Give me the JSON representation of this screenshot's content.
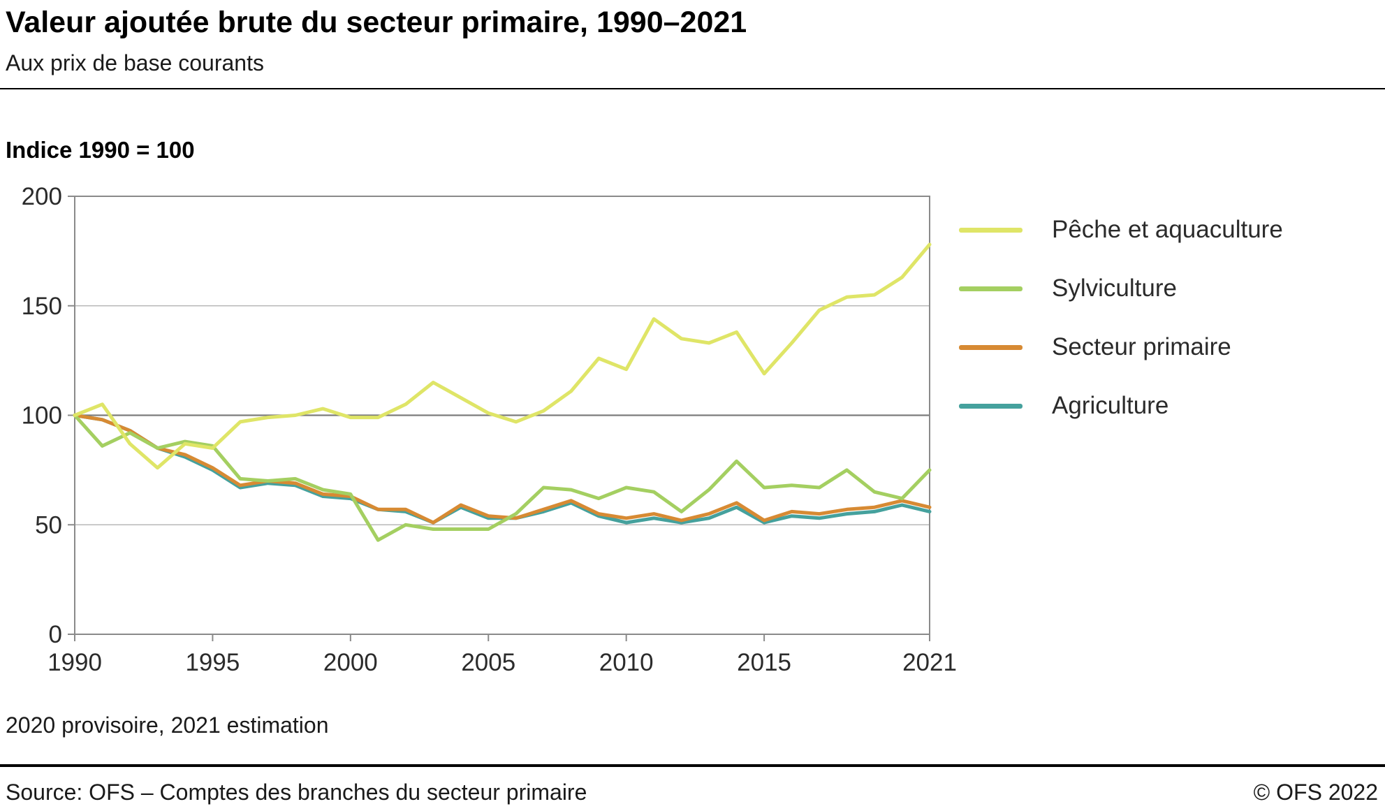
{
  "header": {
    "title": "Valeur ajoutée brute du secteur primaire, 1990–2021",
    "subtitle": "Aux prix de base courants"
  },
  "axis_note": "Indice 1990 = 100",
  "footnote": "2020 provisoire, 2021 estimation",
  "footer": {
    "source": "Source: OFS – Comptes des branches du secteur primaire",
    "copyright": "© OFS 2022"
  },
  "chart_data": {
    "type": "line",
    "x": [
      1990,
      1991,
      1992,
      1993,
      1994,
      1995,
      1996,
      1997,
      1998,
      1999,
      2000,
      2001,
      2002,
      2003,
      2004,
      2005,
      2006,
      2007,
      2008,
      2009,
      2010,
      2011,
      2012,
      2013,
      2014,
      2015,
      2016,
      2017,
      2018,
      2019,
      2020,
      2021
    ],
    "x_ticks": [
      1990,
      1995,
      2000,
      2005,
      2010,
      2015,
      2021
    ],
    "y_ticks": [
      0,
      50,
      100,
      150,
      200
    ],
    "ylim": [
      0,
      200
    ],
    "grid": "horizontal",
    "legend_position": "right",
    "series": [
      {
        "name": "Pêche et aquaculture",
        "color": "#dfe567",
        "values": [
          100,
          105,
          87,
          76,
          87,
          85,
          97,
          99,
          100,
          103,
          99,
          99,
          105,
          115,
          108,
          101,
          97,
          102,
          111,
          126,
          121,
          144,
          135,
          133,
          138,
          119,
          133,
          148,
          154,
          155,
          163,
          178
        ]
      },
      {
        "name": "Sylviculture",
        "color": "#a4cf61",
        "values": [
          100,
          86,
          92,
          85,
          88,
          86,
          71,
          70,
          71,
          66,
          64,
          43,
          50,
          48,
          48,
          48,
          55,
          67,
          66,
          62,
          67,
          65,
          56,
          66,
          79,
          67,
          68,
          67,
          75,
          65,
          62,
          75
        ]
      },
      {
        "name": "Secteur primaire",
        "color": "#d78a33",
        "values": [
          100,
          98,
          93,
          85,
          82,
          76,
          68,
          70,
          69,
          64,
          63,
          57,
          57,
          51,
          59,
          54,
          53,
          57,
          61,
          55,
          53,
          55,
          52,
          55,
          60,
          52,
          56,
          55,
          57,
          58,
          61,
          58
        ]
      },
      {
        "name": "Agriculture",
        "color": "#45a19d",
        "values": [
          100,
          98,
          93,
          85,
          81,
          75,
          67,
          69,
          68,
          63,
          62,
          57,
          56,
          51,
          58,
          53,
          53,
          56,
          60,
          54,
          51,
          53,
          51,
          53,
          58,
          51,
          54,
          53,
          55,
          56,
          59,
          56
        ]
      }
    ]
  }
}
